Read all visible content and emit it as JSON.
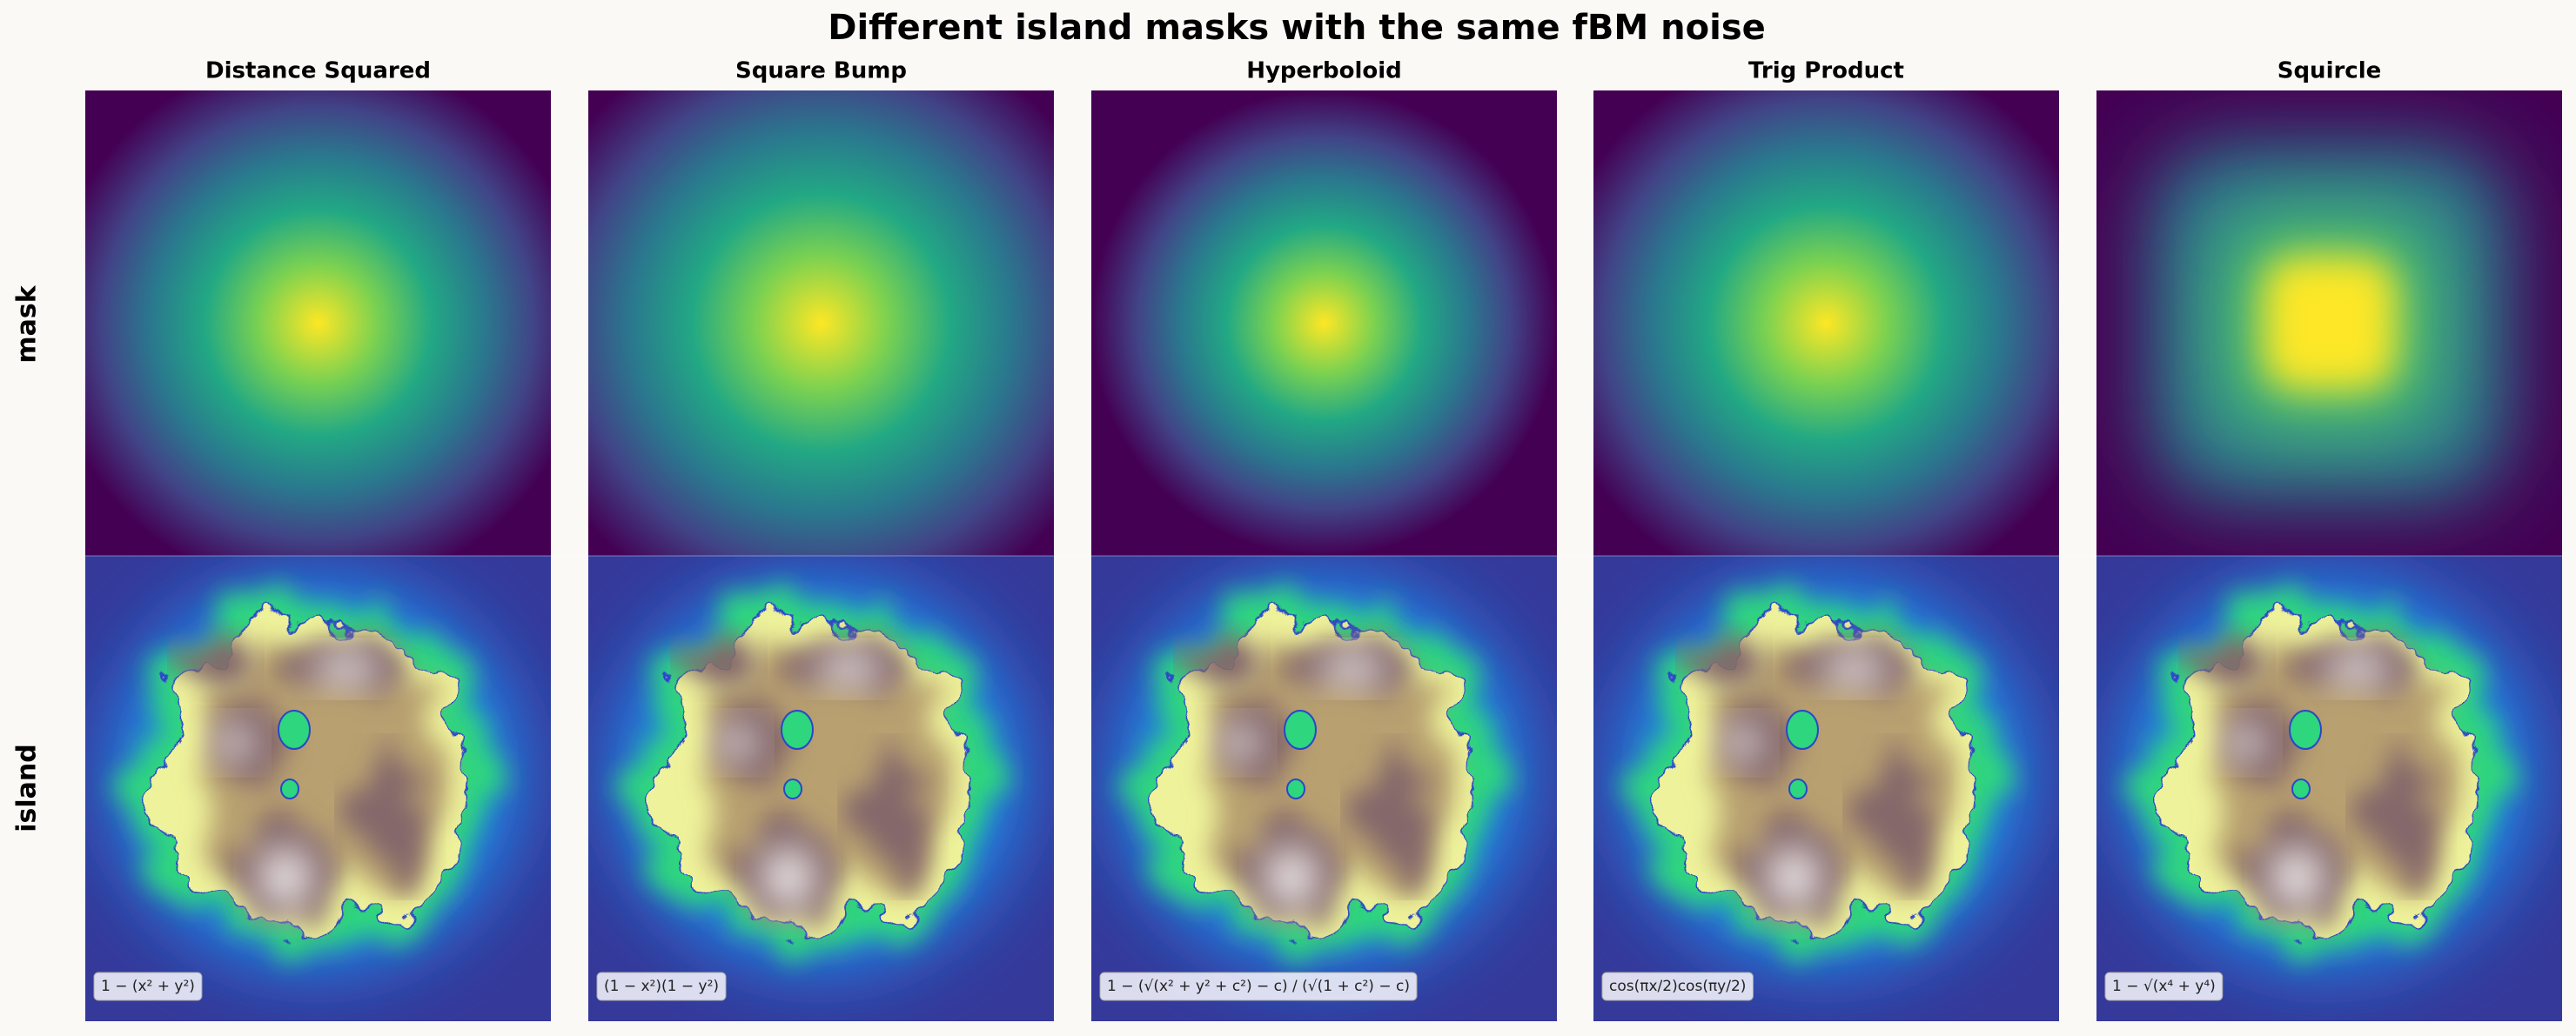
{
  "title": "Different island masks with the same fBM noise",
  "row_labels": [
    "mask",
    "island"
  ],
  "panels": [
    {
      "title": "Distance Squared",
      "formula": "1 − (x² + y²)"
    },
    {
      "title": "Square Bump",
      "formula": "(1 − x²)(1 − y²)"
    },
    {
      "title": "Hyperboloid",
      "formula": "1 − (√(x² + y² + c²) − c) / (√(1 + c²) − c)"
    },
    {
      "title": "Trig Product",
      "formula": "cos(πx/2)cos(πy/2)"
    },
    {
      "title": "Squircle",
      "formula": "1 − √(x⁴ + y⁴)"
    }
  ]
}
